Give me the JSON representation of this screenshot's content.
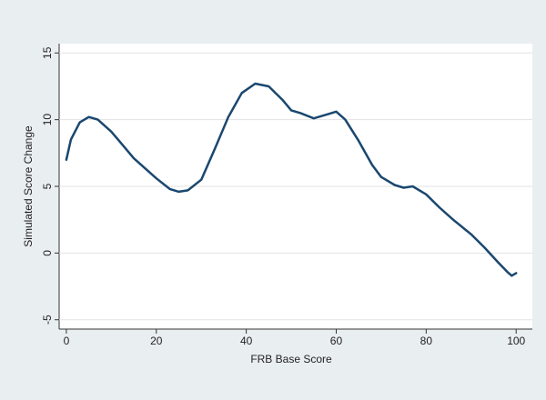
{
  "chart_data": {
    "type": "line",
    "x_label": "FRB Base Score",
    "y_label": "Simulated Score Change",
    "x": [
      0,
      1,
      3,
      5,
      7,
      10,
      15,
      20,
      23,
      25,
      27,
      30,
      33,
      36,
      39,
      42,
      45,
      48,
      50,
      52,
      55,
      58,
      60,
      62,
      65,
      68,
      70,
      73,
      75,
      77,
      80,
      83,
      86,
      90,
      93,
      96,
      98,
      99,
      100
    ],
    "values": [
      7.0,
      8.5,
      9.8,
      10.2,
      10.0,
      9.1,
      7.1,
      5.6,
      4.8,
      4.6,
      4.7,
      5.5,
      7.8,
      10.2,
      12.0,
      12.7,
      12.5,
      11.5,
      10.7,
      10.5,
      10.1,
      10.4,
      10.6,
      10.0,
      8.4,
      6.6,
      5.7,
      5.1,
      4.9,
      5.0,
      4.4,
      3.4,
      2.5,
      1.4,
      0.4,
      -0.7,
      -1.4,
      -1.7,
      -1.5
    ],
    "color": "#1a476f",
    "xlim": [
      -1.6,
      103.6
    ],
    "ylim": [
      -5.7,
      15.7
    ],
    "xticks": [
      0,
      20,
      40,
      60,
      80,
      100
    ],
    "yticks": [
      -5,
      0,
      5,
      10,
      15
    ],
    "grid": true
  }
}
